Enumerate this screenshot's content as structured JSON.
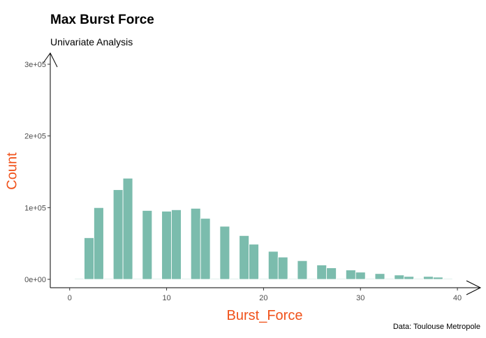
{
  "chart_data": {
    "type": "bar",
    "title": "Max Burst Force",
    "subtitle": "Univariate Analysis",
    "caption": "Data: Toulouse Metropole",
    "xlabel": "Burst_Force",
    "ylabel": "Count",
    "xlim": [
      -2,
      40.5
    ],
    "ylim": [
      -10000,
      300000
    ],
    "x_ticks": [
      0,
      10,
      20,
      30,
      40
    ],
    "x_tick_labels": [
      "0",
      "10",
      "20",
      "30",
      "40"
    ],
    "y_ticks": [
      0,
      100000,
      200000,
      300000
    ],
    "y_tick_labels": [
      "0e+00",
      "1e+05",
      "2e+05",
      "3e+05"
    ],
    "bar_color": "#7bbcad",
    "label_color": "#f0521b",
    "grid": false,
    "bars": [
      {
        "x": 1,
        "y": 1000
      },
      {
        "x": 2,
        "y": 58000
      },
      {
        "x": 3,
        "y": 100000
      },
      {
        "x": 4,
        "y": 1000
      },
      {
        "x": 5,
        "y": 125000
      },
      {
        "x": 6,
        "y": 141000
      },
      {
        "x": 7,
        "y": 1000
      },
      {
        "x": 8,
        "y": 96000
      },
      {
        "x": 9,
        "y": 1000
      },
      {
        "x": 10,
        "y": 95000
      },
      {
        "x": 11,
        "y": 97000
      },
      {
        "x": 12,
        "y": 1000
      },
      {
        "x": 13,
        "y": 99000
      },
      {
        "x": 14,
        "y": 85000
      },
      {
        "x": 15,
        "y": 1000
      },
      {
        "x": 16,
        "y": 74000
      },
      {
        "x": 17,
        "y": 1000
      },
      {
        "x": 18,
        "y": 61000
      },
      {
        "x": 19,
        "y": 49000
      },
      {
        "x": 20,
        "y": 1000
      },
      {
        "x": 21,
        "y": 39000
      },
      {
        "x": 22,
        "y": 31000
      },
      {
        "x": 23,
        "y": 1000
      },
      {
        "x": 24,
        "y": 26000
      },
      {
        "x": 25,
        "y": 1000
      },
      {
        "x": 26,
        "y": 20000
      },
      {
        "x": 27,
        "y": 16000
      },
      {
        "x": 28,
        "y": 1000
      },
      {
        "x": 29,
        "y": 13000
      },
      {
        "x": 30,
        "y": 10000
      },
      {
        "x": 31,
        "y": 1000
      },
      {
        "x": 32,
        "y": 8000
      },
      {
        "x": 33,
        "y": 1000
      },
      {
        "x": 34,
        "y": 6000
      },
      {
        "x": 35,
        "y": 4000
      },
      {
        "x": 36,
        "y": 1000
      },
      {
        "x": 37,
        "y": 4000
      },
      {
        "x": 38,
        "y": 3000
      },
      {
        "x": 39,
        "y": 1000
      }
    ]
  }
}
